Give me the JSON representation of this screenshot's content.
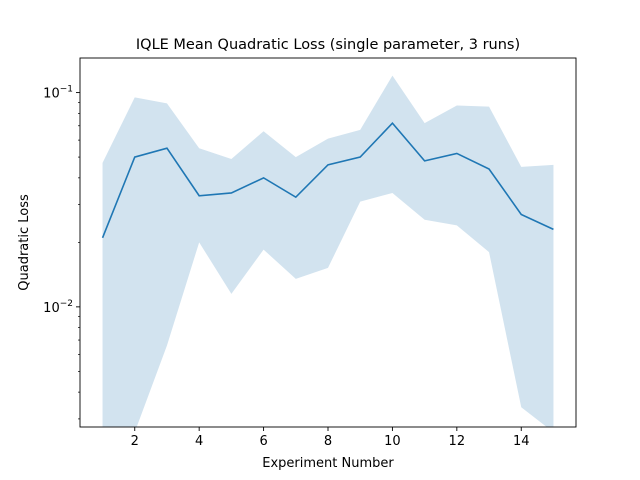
{
  "chart_data": {
    "type": "line",
    "title": "IQLE Mean Quadratic Loss (single parameter, 3 runs)",
    "xlabel": "Experiment Number",
    "ylabel": "Quadratic Loss",
    "yscale": "log",
    "xlim": [
      0.3,
      15.7
    ],
    "ylim": [
      0.00275,
      0.145
    ],
    "x_ticks": [
      2,
      4,
      6,
      8,
      10,
      12,
      14
    ],
    "y_ticks": [
      {
        "value": 0.01,
        "base": "10",
        "exp": "−2"
      },
      {
        "value": 0.1,
        "base": "10",
        "exp": "−1"
      }
    ],
    "grid": false,
    "colors": {
      "line": "#1f77b4",
      "band": "#d2e3ef"
    },
    "series": [
      {
        "x": [
          1,
          2,
          3,
          4,
          5,
          6,
          7,
          8,
          9,
          10,
          11,
          12,
          13,
          14,
          15
        ],
        "values": [
          0.021,
          0.05,
          0.055,
          0.033,
          0.034,
          0.04,
          0.0325,
          0.046,
          0.05,
          0.072,
          0.048,
          0.052,
          0.044,
          0.027,
          0.023
        ],
        "upper": [
          0.047,
          0.095,
          0.089,
          0.055,
          0.049,
          0.066,
          0.05,
          0.061,
          0.067,
          0.12,
          0.072,
          0.087,
          0.086,
          0.045,
          0.046
        ],
        "lower": [
          0.0026,
          0.0026,
          0.0066,
          0.02,
          0.0115,
          0.0185,
          0.0135,
          0.0152,
          0.031,
          0.034,
          0.0255,
          0.024,
          0.018,
          0.0034,
          0.0026
        ]
      }
    ]
  }
}
